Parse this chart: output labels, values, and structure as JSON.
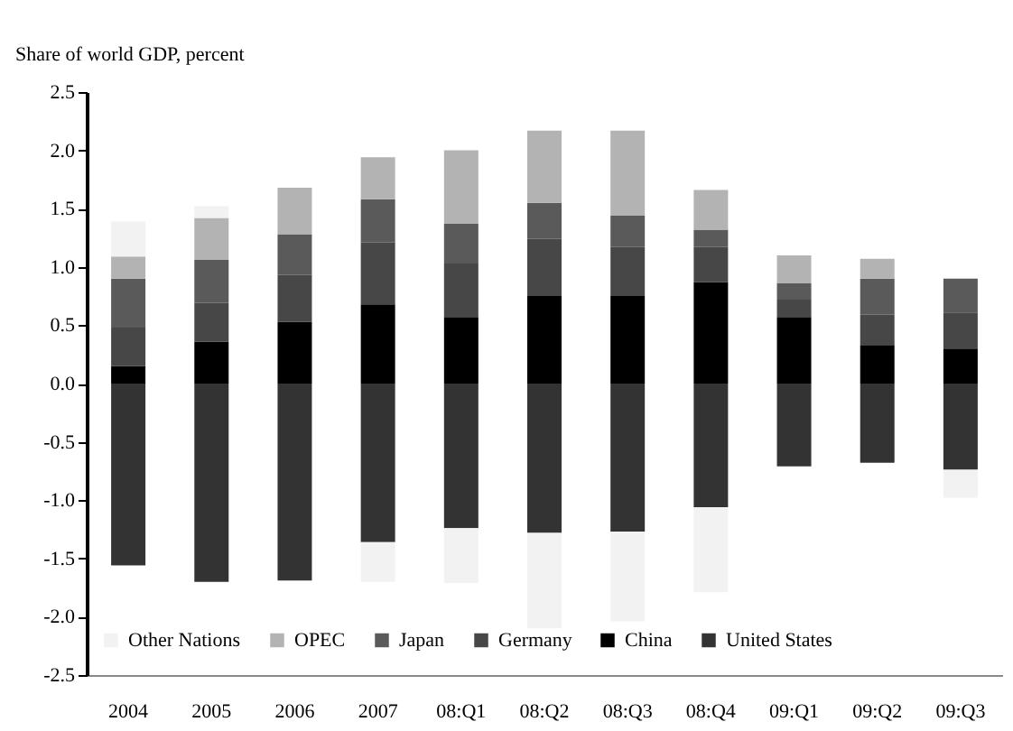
{
  "chart_data": {
    "type": "bar",
    "stacked": true,
    "ylabel": "Share of world GDP, percent",
    "categories": [
      "2004",
      "2005",
      "2006",
      "2007",
      "08:Q1",
      "08:Q2",
      "08:Q3",
      "08:Q4",
      "09:Q1",
      "09:Q2",
      "09:Q3"
    ],
    "series": [
      {
        "name": "United States",
        "color": "#333333",
        "values": [
          -1.56,
          -1.7,
          -1.69,
          -1.36,
          -1.24,
          -1.28,
          -1.27,
          -1.06,
          -0.71,
          -0.68,
          -0.74
        ]
      },
      {
        "name": "China",
        "color": "#000000",
        "values": [
          0.15,
          0.36,
          0.53,
          0.68,
          0.57,
          0.75,
          0.75,
          0.87,
          0.57,
          0.33,
          0.3
        ]
      },
      {
        "name": "Germany",
        "color": "#474747",
        "values": [
          0.33,
          0.33,
          0.4,
          0.53,
          0.46,
          0.49,
          0.42,
          0.3,
          0.15,
          0.26,
          0.31
        ]
      },
      {
        "name": "Japan",
        "color": "#5a5a5a",
        "values": [
          0.42,
          0.37,
          0.35,
          0.37,
          0.34,
          0.31,
          0.27,
          0.15,
          0.14,
          0.31,
          0.29
        ]
      },
      {
        "name": "OPEC",
        "color": "#b3b3b3",
        "values": [
          0.19,
          0.36,
          0.4,
          0.36,
          0.63,
          0.62,
          0.73,
          0.34,
          0.24,
          0.17,
          0
        ]
      },
      {
        "name": "Other Nations",
        "color": "#f2f2f2",
        "values": [
          0.3,
          0.1,
          0,
          -0.34,
          -0.47,
          -0.82,
          -0.77,
          -0.73,
          0,
          0,
          -0.24
        ]
      }
    ],
    "ylim": [
      -2.5,
      2.5
    ],
    "yticks": [
      {
        "value": -2.5,
        "label": "-2.5"
      },
      {
        "value": -2,
        "label": "-2.0"
      },
      {
        "value": -1.5,
        "label": "-1.5"
      },
      {
        "value": -1,
        "label": "-1.0"
      },
      {
        "value": -0.5,
        "label": "-0.5"
      },
      {
        "value": 0,
        "label": "0.0"
      },
      {
        "value": 0.5,
        "label": "0.5"
      },
      {
        "value": 1,
        "label": "1.0"
      },
      {
        "value": 1.5,
        "label": "1.5"
      },
      {
        "value": 2,
        "label": "2.0"
      },
      {
        "value": 2.5,
        "label": "2.5"
      }
    ],
    "grid": false,
    "legend": "bottom"
  }
}
